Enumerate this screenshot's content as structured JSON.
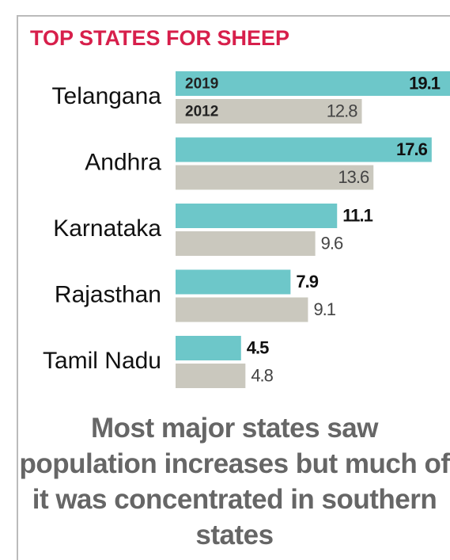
{
  "chart_data": {
    "type": "bar",
    "orientation": "horizontal",
    "title": "TOP STATES FOR SHEEP",
    "subtitle": "Most major states saw population increases but much of it was concentrated in southern states",
    "categories": [
      "Telangana",
      "Andhra",
      "Karnataka",
      "Rajasthan",
      "Tamil Nadu"
    ],
    "series": [
      {
        "name": "2019",
        "color": "#6dc7c9",
        "values": [
          19.1,
          17.6,
          11.1,
          7.9,
          4.5
        ]
      },
      {
        "name": "2012",
        "color": "#cac8be",
        "values": [
          12.8,
          13.6,
          9.6,
          9.1,
          4.8
        ]
      }
    ]
  }
}
